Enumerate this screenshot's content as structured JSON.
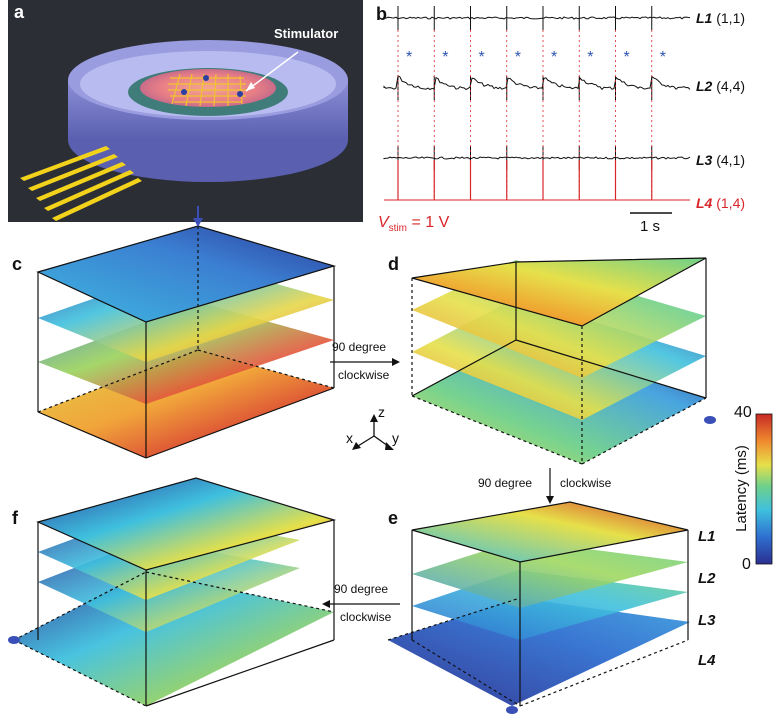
{
  "panels": {
    "a": "a",
    "b": "b",
    "c": "c",
    "d": "d",
    "e": "e",
    "f": "f"
  },
  "panel_a": {
    "stimulator_label": "Stimulator"
  },
  "panel_b": {
    "traces": [
      {
        "name": "L1",
        "coord": "(1,1)",
        "color": "#111111"
      },
      {
        "name": "L2",
        "coord": "(4,4)",
        "color": "#111111"
      },
      {
        "name": "L3",
        "coord": "(4,1)",
        "color": "#111111"
      },
      {
        "name": "L4",
        "coord": "(1,4)",
        "color": "#d9262b"
      }
    ],
    "stim_marker": "*",
    "vstim_symbol": "V",
    "vstim_sub": "stim",
    "vstim_value": "= 1 V",
    "scale_bar": "1 s",
    "pulse_count": 8
  },
  "rotations": {
    "c_to_d": {
      "line1": "90 degree",
      "line2": "clockwise"
    },
    "d_to_e": {
      "line1": "90 degree",
      "line2": "clockwise"
    },
    "e_to_f": {
      "line1": "90 degree",
      "line2": "clockwise"
    }
  },
  "axes": {
    "x": "x",
    "y": "y",
    "z": "z"
  },
  "colorbar": {
    "max": "40",
    "min": "0",
    "label": "Latency (ms)"
  },
  "layer_labels": [
    "L1",
    "L2",
    "L3",
    "L4"
  ],
  "colors": {
    "accent_red": "#d9262b",
    "accent_blue": "#2f55b0",
    "dark_bg": "#2a2d33"
  }
}
